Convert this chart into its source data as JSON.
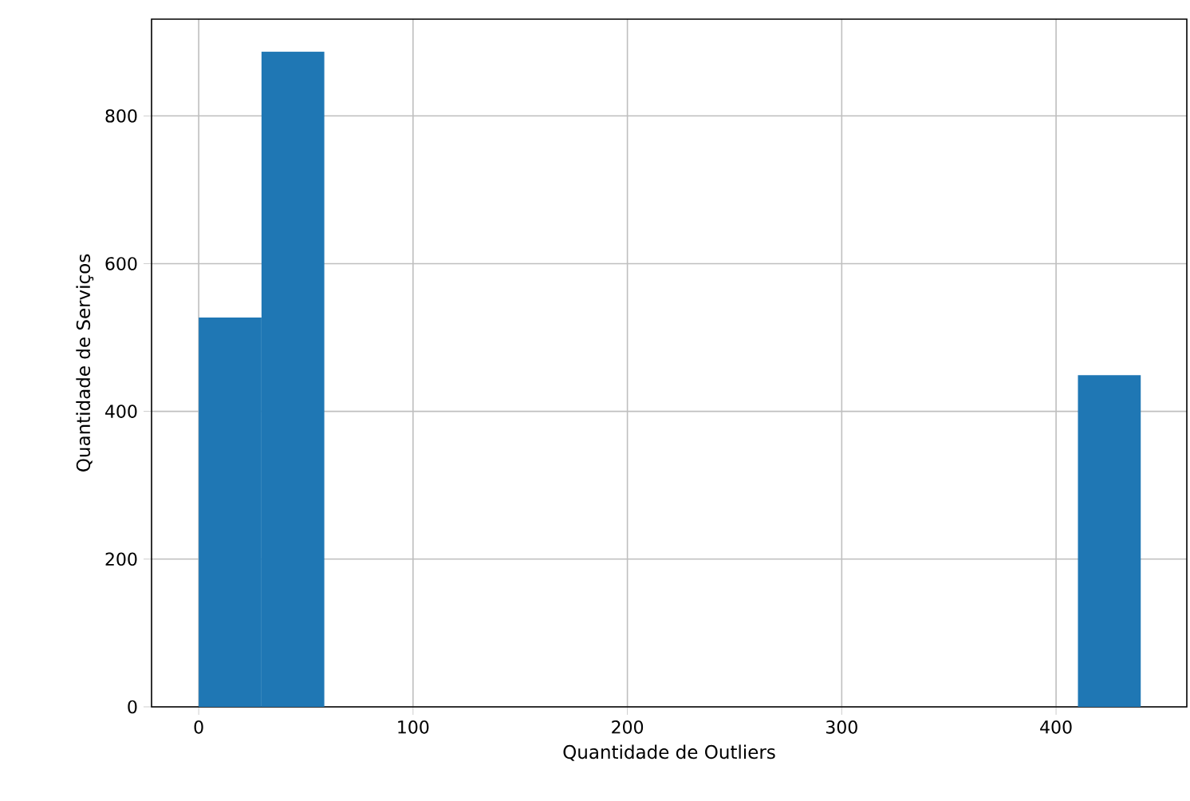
{
  "chart_data": {
    "type": "histogram",
    "xlabel": "Quantidade de Outliers",
    "ylabel": "Quantidade de Serviços",
    "bins": [
      0,
      29.3,
      58.6,
      87.9,
      117.2,
      146.5,
      175.8,
      205.1,
      234.4,
      263.7,
      293,
      322.3,
      351.6,
      380.9,
      410.2,
      439.5
    ],
    "values": [
      527,
      887,
      0,
      0,
      0,
      0,
      0,
      0,
      0,
      0,
      0,
      0,
      0,
      0,
      449
    ],
    "color": "#1f77b4",
    "xlim": [
      -22,
      461
    ],
    "ylim": [
      0,
      931
    ],
    "xticks": [
      0,
      100,
      200,
      300,
      400
    ],
    "yticks": [
      0,
      200,
      400,
      600,
      800
    ],
    "grid": true
  }
}
